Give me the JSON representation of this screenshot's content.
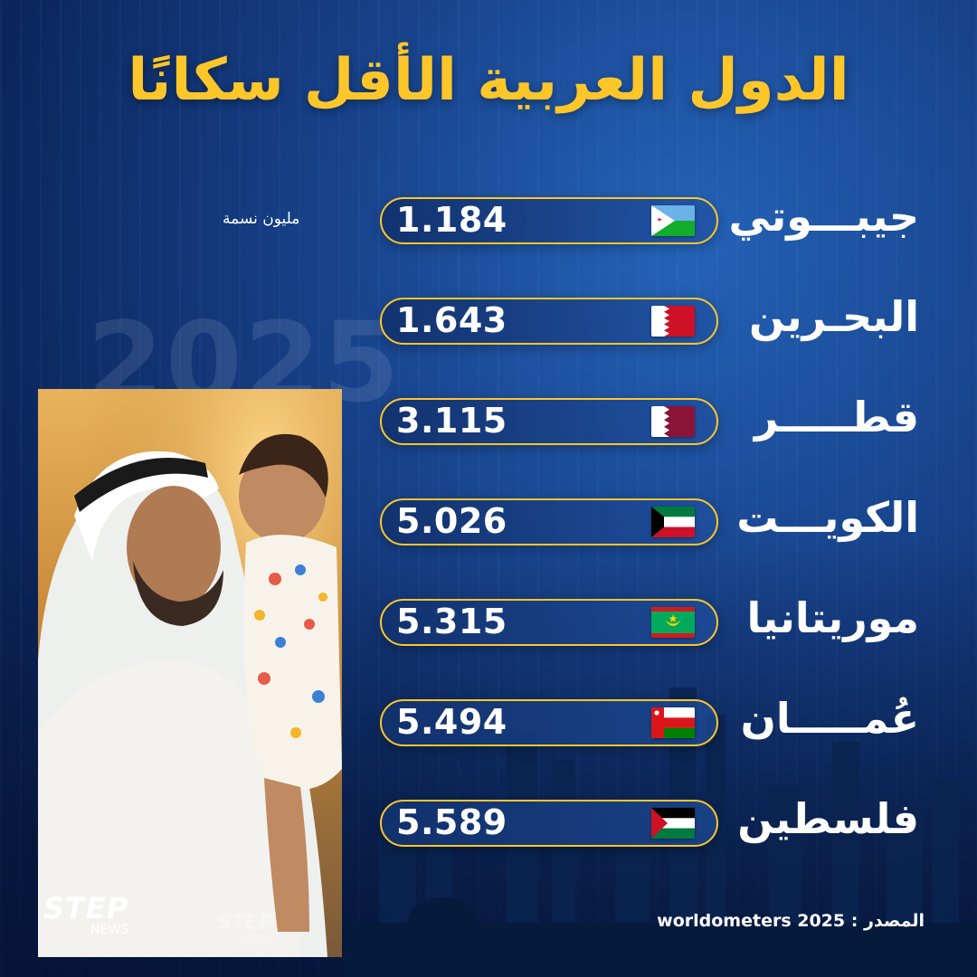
{
  "title": "الدول العربية الأقل سكانًا",
  "unit_label": "مليون نسمة",
  "year_watermark": "2025",
  "source_label": "المصدر : worldometers 2025",
  "logo": {
    "name": "STEP",
    "sub": "NEWS"
  },
  "colors": {
    "accent": "#ffc62a",
    "background": "#163f86"
  },
  "chart_data": {
    "type": "bar",
    "categories": [
      "جيبـــوتي",
      "البحـرين",
      "قطـــــر",
      "الكويـــت",
      "موريتانيا",
      "عُمـــــان",
      "فلسطين"
    ],
    "series": [
      {
        "values": [
          1.184,
          1.643,
          3.115,
          5.026,
          5.315,
          5.494,
          5.589
        ]
      }
    ],
    "value_labels": [
      "1.184",
      "1.643",
      "3.115",
      "5.026",
      "5.315",
      "5.494",
      "5.589"
    ],
    "flags": [
      "djibouti",
      "bahrain",
      "qatar",
      "kuwait",
      "mauritania",
      "oman",
      "palestine"
    ],
    "unit": "مليون نسمة"
  }
}
